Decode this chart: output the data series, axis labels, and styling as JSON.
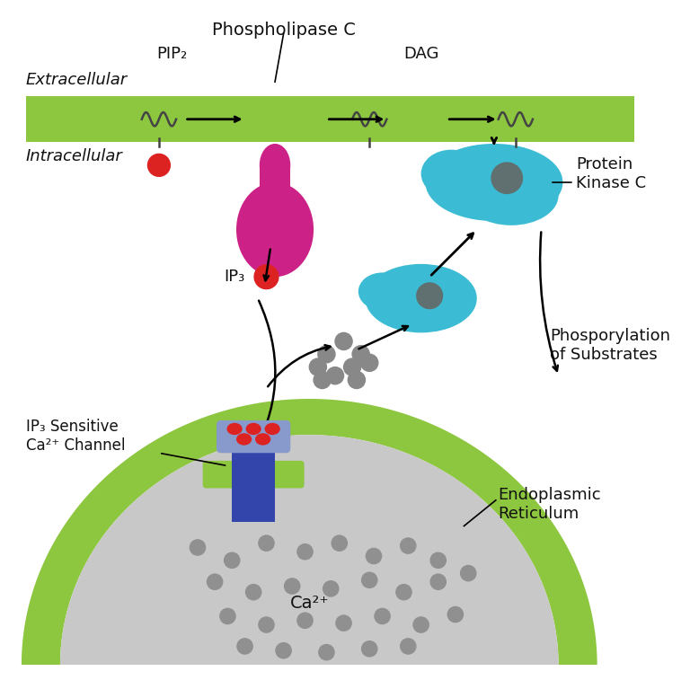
{
  "bg_color": "#ffffff",
  "membrane_color": "#8dc63f",
  "er_color": "#8dc63f",
  "er_inner_color": "#c8c8c8",
  "plc_color": "#cc2288",
  "pkc_color": "#3bbcd4",
  "ca_dot_color": "#888888",
  "channel_body_color": "#3344aa",
  "channel_top_color": "#8899cc",
  "channel_red_color": "#dd2222",
  "red_dot_color": "#dd2222",
  "arrow_color": "#111111",
  "text_color": "#111111",
  "nucleus_color": "#607070",
  "labels": {
    "extracellular": "Extracellular",
    "intracellular": "Intracellular",
    "pip2": "PIP₂",
    "phospholipase": "Phospholipase C",
    "dag": "DAG",
    "ip3": "IP₃",
    "ip3_channel": "IP₃ Sensitive\nCa²⁺ Channel",
    "pkc": "Protein\nKinase C",
    "phosphorylation": "Phosporylation\nof Substrates",
    "er": "Endoplasmic\nReticulum",
    "ca2": "Ca²⁺"
  }
}
